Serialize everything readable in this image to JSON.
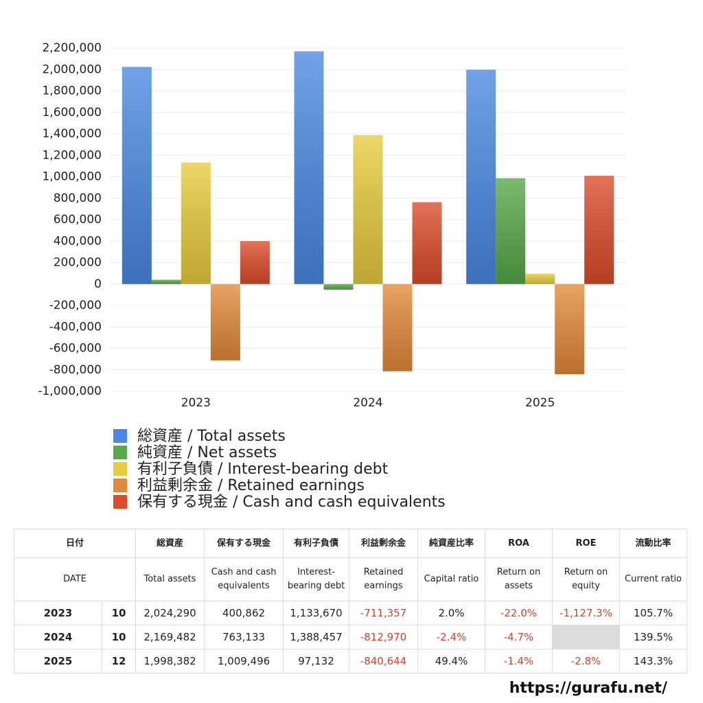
{
  "chart_data": {
    "type": "bar",
    "categories": [
      "2023",
      "2024",
      "2025"
    ],
    "series": [
      {
        "name": "総資産 / Total assets",
        "color": "#4a89e3",
        "values": [
          2024290,
          2169482,
          1998382
        ]
      },
      {
        "name": "純資産 / Net assets",
        "color": "#57a847",
        "values": [
          40486,
          -52068,
          987200
        ]
      },
      {
        "name": "有利子負債 / Interest-bearing debt",
        "color": "#e8cc3c",
        "values": [
          1133670,
          1388457,
          97132
        ]
      },
      {
        "name": "利益剰余金 / Retained earnings",
        "color": "#e38a3a",
        "values": [
          -711357,
          -812970,
          -840644
        ]
      },
      {
        "name": "保有する現金 /  Cash and cash equivalents",
        "color": "#dd4b2a",
        "values": [
          400862,
          763133,
          1009496
        ]
      }
    ],
    "ylim": [
      -1000000,
      2200000
    ],
    "yticks": [
      {
        "value": -1000000,
        "label": "-1,000,000"
      },
      {
        "value": -800000,
        "label": "-800,000"
      },
      {
        "value": -600000,
        "label": "-600,000"
      },
      {
        "value": -400000,
        "label": "-400,000"
      },
      {
        "value": -200000,
        "label": "-200,000"
      },
      0,
      {
        "value": 200000,
        "label": "200,000"
      },
      {
        "value": 400000,
        "label": "400,000"
      },
      {
        "value": 600000,
        "label": "600,000"
      },
      {
        "value": 800000,
        "label": "800,000"
      },
      {
        "value": 1000000,
        "label": "1,000,000"
      },
      {
        "value": 1200000,
        "label": "1,200,000"
      },
      {
        "value": 1400000,
        "label": "1,400,000"
      },
      {
        "value": 1600000,
        "label": "1,600,000"
      },
      {
        "value": 1800000,
        "label": "1,800,000"
      },
      {
        "value": 2000000,
        "label": "2,000,000"
      },
      {
        "value": 2200000,
        "label": "2,200,000"
      }
    ],
    "grid": true,
    "legend": "bottom"
  },
  "table": {
    "header": [
      "日付",
      "総資産",
      "保有する現金",
      "有利子負債",
      "利益剰余金",
      "純資産比率",
      "ROA",
      "ROE",
      "流動比率"
    ],
    "subheader": [
      "DATE",
      "Total assets",
      "Cash and cash equivalents",
      "Interest-bearing debt",
      "Retained earnings",
      "Capital ratio",
      "Return on assets",
      "Return on equity",
      "Current ratio"
    ],
    "rows": [
      [
        "2023",
        "10",
        "2,024,290",
        "400,862",
        "1,133,670",
        "-711,357",
        "2.0%",
        "-22.0%",
        "-1,127.3%",
        "105.7%"
      ],
      [
        "2024",
        "10",
        "2,169,482",
        "763,133",
        "1,388,457",
        "-812,970",
        "-2.4%",
        "-4.7%",
        null,
        "139.5%"
      ],
      [
        "2025",
        "12",
        "1,998,382",
        "1,009,496",
        "97,132",
        "-840,644",
        "49.4%",
        "-1.4%",
        "-2.8%",
        "143.3%"
      ]
    ]
  },
  "footer": "https://gurafu.net/"
}
